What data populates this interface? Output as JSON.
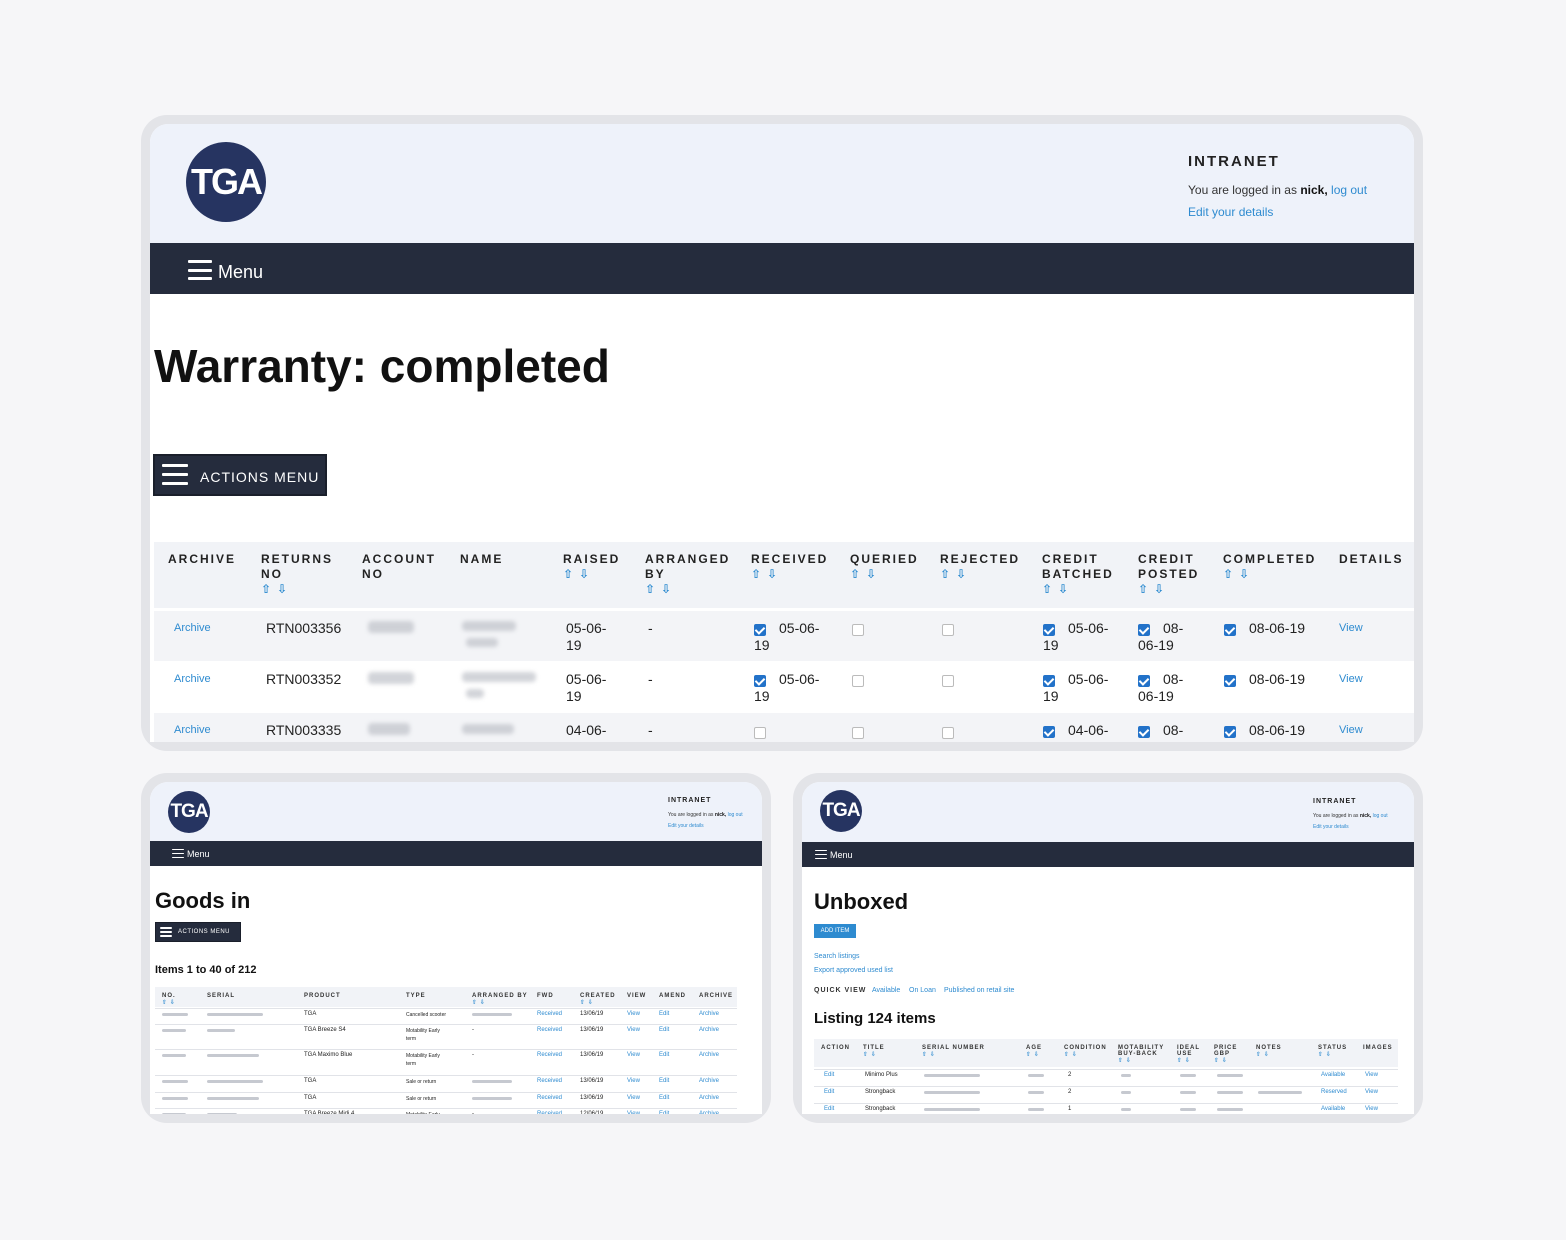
{
  "colors": {
    "navy": "#252c3d",
    "logo": "#263461",
    "link": "#2e8bd0",
    "check": "#2272c9",
    "header_bg": "#eef2fa"
  },
  "header": {
    "logo_text": "TGA",
    "intranet": "INTRANET",
    "logged_prefix": "You are logged in as",
    "user": "nick,",
    "logout": "log out",
    "edit_details": "Edit your details"
  },
  "nav": {
    "menu_label": "Menu",
    "menu_icon": "hamburger-icon"
  },
  "warranty": {
    "title": "Warranty: completed",
    "actions_label": "ACTIONS MENU",
    "sort_icon": "sort-arrows-icon",
    "columns": {
      "archive": "ARCHIVE",
      "returns_no_1": "RETURNS",
      "returns_no_2": "NO",
      "account_no_1": "ACCOUNT",
      "account_no_2": "NO",
      "name": "NAME",
      "raised": "RAISED",
      "arranged_1": "ARRANGED",
      "arranged_2": "BY",
      "received": "RECEIVED",
      "queried": "QUERIED",
      "rejected": "REJECTED",
      "credit_batched_1": "CREDIT",
      "credit_batched_2": "BATCHED",
      "credit_posted_1": "CREDIT",
      "credit_posted_2": "POSTED",
      "completed": "COMPLETED",
      "details": "DETAILS"
    },
    "rows": [
      {
        "archive": "Archive",
        "returns_no": "RTN003356",
        "raised_1": "05-06-",
        "raised_2": "19",
        "arranged_by": "-",
        "received_1": "05-06-",
        "received_2": "19",
        "batched_1": "05-06-",
        "batched_2": "19",
        "posted_1": "08-",
        "posted_2": "06-19",
        "completed": "08-06-19",
        "details": "View"
      },
      {
        "archive": "Archive",
        "returns_no": "RTN003352",
        "raised_1": "05-06-",
        "raised_2": "19",
        "arranged_by": "-",
        "received_1": "05-06-",
        "received_2": "19",
        "batched_1": "05-06-",
        "batched_2": "19",
        "posted_1": "08-",
        "posted_2": "06-19",
        "completed": "08-06-19",
        "details": "View"
      },
      {
        "archive": "Archive",
        "returns_no": "RTN003335",
        "raised_1": "04-06-",
        "arranged_by": "-",
        "batched_1": "04-06-",
        "posted_1": "08-",
        "completed": "08-06-19",
        "details": "View"
      }
    ]
  },
  "goods_in": {
    "title": "Goods in",
    "actions_label": "ACTIONS MENU",
    "items_count": "Items 1 to 40 of 212",
    "columns": {
      "no": "NO.",
      "serial": "SERIAL",
      "product": "PRODUCT",
      "type": "TYPE",
      "arranged_by": "ARRANGED BY",
      "fwd": "FWD",
      "created": "CREATED",
      "view": "VIEW",
      "amend": "AMEND",
      "archive": "ARCHIVE"
    },
    "rows": [
      {
        "product": "TGA",
        "type_1": "Cancelled scooter",
        "type_2": "",
        "arranged": "",
        "fwd": "Received",
        "created": "13/06/19",
        "view": "View",
        "amend": "Edit",
        "archive": "Archive"
      },
      {
        "product": "TGA Breeze S4",
        "type_1": "Motability Early",
        "type_2": "term",
        "arranged": "-",
        "fwd": "Received",
        "created": "13/06/19",
        "view": "View",
        "amend": "Edit",
        "archive": "Archive"
      },
      {
        "product": "TGA Maximo Blue",
        "type_1": "Motability Early",
        "type_2": "term",
        "arranged": "-",
        "fwd": "Received",
        "created": "13/06/19",
        "view": "View",
        "amend": "Edit",
        "archive": "Archive"
      },
      {
        "product": "TGA",
        "type_1": "Sale or return",
        "type_2": "",
        "arranged": "",
        "fwd": "Received",
        "created": "13/06/19",
        "view": "View",
        "amend": "Edit",
        "archive": "Archive"
      },
      {
        "product": "TGA",
        "type_1": "Sale or return",
        "type_2": "",
        "arranged": "",
        "fwd": "Received",
        "created": "13/06/19",
        "view": "View",
        "amend": "Edit",
        "archive": "Archive"
      },
      {
        "product": "TGA Breeze Midi 4",
        "type_1": "Motability Early",
        "type_2": "",
        "arranged": "-",
        "fwd": "Received",
        "created": "12/06/19",
        "view": "View",
        "amend": "Edit",
        "archive": "Archive"
      }
    ]
  },
  "unboxed": {
    "title": "Unboxed",
    "add_item": "ADD ITEM",
    "search_listings": "Search listings",
    "export_list": "Export approved used list",
    "quick_view_label": "QUICK VIEW",
    "quick_views": [
      "Available",
      "On Loan",
      "Published on retail site"
    ],
    "listing_count": "Listing 124 items",
    "columns": {
      "action": "ACTION",
      "title": "TITLE",
      "serial": "SERIAL NUMBER",
      "age": "AGE",
      "condition": "CONDITION",
      "motability_1": "MOTABILITY",
      "motability_2": "BUY-BACK",
      "ideal_1": "IDEAL",
      "ideal_2": "USE",
      "price_1": "PRICE",
      "price_2": "GBP",
      "notes": "NOTES",
      "status": "STATUS",
      "images": "IMAGES"
    },
    "rows": [
      {
        "action": "Edit",
        "title": "Minimo Plus",
        "condition": "2",
        "status": "Available",
        "images": "View"
      },
      {
        "action": "Edit",
        "title": "Strongback",
        "condition": "2",
        "status": "Reserved",
        "images": "View"
      },
      {
        "action": "Edit",
        "title": "Strongback",
        "condition": "1",
        "status": "Available",
        "images": "View"
      }
    ]
  }
}
